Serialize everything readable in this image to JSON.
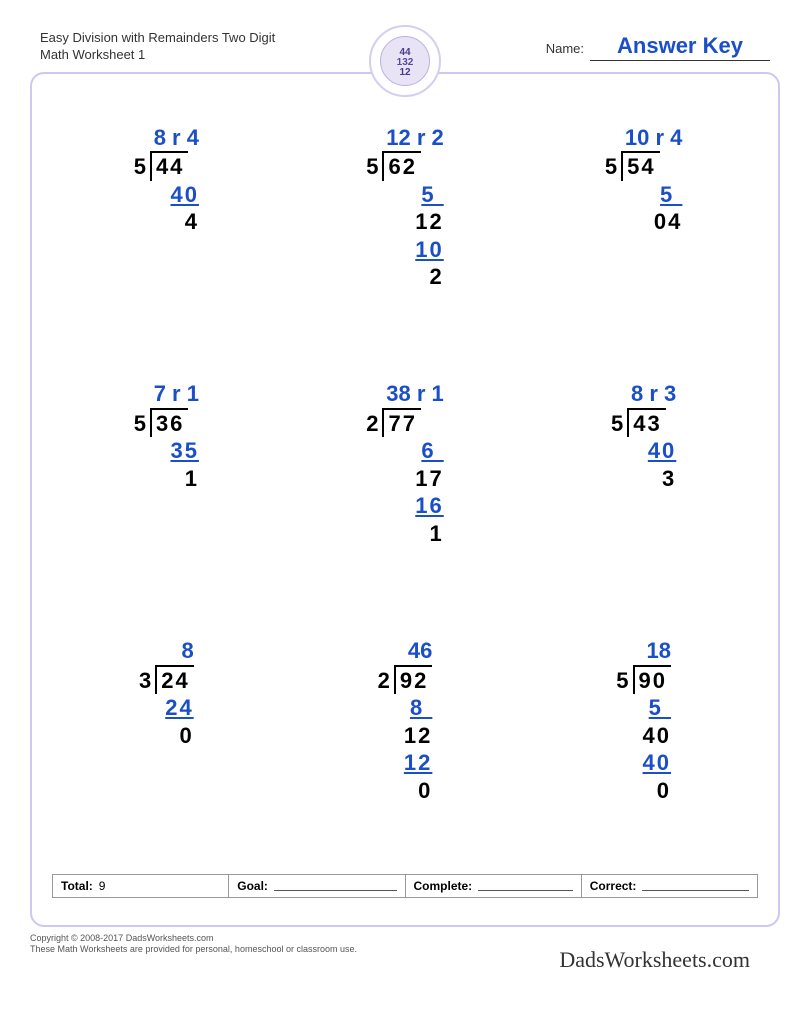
{
  "header": {
    "title_line1": "Easy Division with Remainders Two Digit",
    "title_line2": "Math Worksheet 1",
    "name_label": "Name:",
    "answer_key": "Answer Key"
  },
  "colors": {
    "answer_blue": "#1a4fc7",
    "frame_border": "#cfc7ee",
    "text_black": "#000000"
  },
  "problems": [
    {
      "quotient": "8 r 4",
      "divisor": "5",
      "dividend": "44",
      "lines": [
        {
          "text": "40",
          "color": "blue",
          "underline": true,
          "pad": 0
        },
        {
          "text": "4",
          "color": "black",
          "underline": false,
          "pad": 0
        }
      ]
    },
    {
      "quotient": "12 r 2",
      "divisor": "5",
      "dividend": "62",
      "lines": [
        {
          "text": "5 ",
          "color": "blue",
          "underline": true,
          "pad": 0
        },
        {
          "text": "12",
          "color": "black",
          "underline": false,
          "pad": 0
        },
        {
          "text": "10",
          "color": "blue",
          "underline": true,
          "pad": 0
        },
        {
          "text": "2",
          "color": "black",
          "underline": false,
          "pad": 0
        }
      ]
    },
    {
      "quotient": "10 r 4",
      "divisor": "5",
      "dividend": "54",
      "lines": [
        {
          "text": "5 ",
          "color": "blue",
          "underline": true,
          "pad": 0
        },
        {
          "text": "04",
          "color": "black",
          "underline": false,
          "pad": 0
        }
      ]
    },
    {
      "quotient": "7 r 1",
      "divisor": "5",
      "dividend": "36",
      "lines": [
        {
          "text": "35",
          "color": "blue",
          "underline": true,
          "pad": 0
        },
        {
          "text": "1",
          "color": "black",
          "underline": false,
          "pad": 0
        }
      ]
    },
    {
      "quotient": "38 r 1",
      "divisor": "2",
      "dividend": "77",
      "lines": [
        {
          "text": "6 ",
          "color": "blue",
          "underline": true,
          "pad": 0
        },
        {
          "text": "17",
          "color": "black",
          "underline": false,
          "pad": 0
        },
        {
          "text": "16",
          "color": "blue",
          "underline": true,
          "pad": 0
        },
        {
          "text": "1",
          "color": "black",
          "underline": false,
          "pad": 0
        }
      ]
    },
    {
      "quotient": "8 r 3",
      "divisor": "5",
      "dividend": "43",
      "lines": [
        {
          "text": "40",
          "color": "blue",
          "underline": true,
          "pad": 0
        },
        {
          "text": "3",
          "color": "black",
          "underline": false,
          "pad": 0
        }
      ]
    },
    {
      "quotient": "8",
      "divisor": "3",
      "dividend": "24",
      "lines": [
        {
          "text": "24",
          "color": "blue",
          "underline": true,
          "pad": 0
        },
        {
          "text": "0",
          "color": "black",
          "underline": false,
          "pad": 0
        }
      ]
    },
    {
      "quotient": "46",
      "divisor": "2",
      "dividend": "92",
      "lines": [
        {
          "text": "8 ",
          "color": "blue",
          "underline": true,
          "pad": 0
        },
        {
          "text": "12",
          "color": "black",
          "underline": false,
          "pad": 0
        },
        {
          "text": "12",
          "color": "blue",
          "underline": true,
          "pad": 0
        },
        {
          "text": "0",
          "color": "black",
          "underline": false,
          "pad": 0
        }
      ]
    },
    {
      "quotient": "18",
      "divisor": "5",
      "dividend": "90",
      "lines": [
        {
          "text": "5 ",
          "color": "blue",
          "underline": true,
          "pad": 0
        },
        {
          "text": "40",
          "color": "black",
          "underline": false,
          "pad": 0
        },
        {
          "text": "40",
          "color": "blue",
          "underline": true,
          "pad": 0
        },
        {
          "text": "0",
          "color": "black",
          "underline": false,
          "pad": 0
        }
      ]
    }
  ],
  "footer": {
    "total_label": "Total:",
    "total_value": "9",
    "goal_label": "Goal:",
    "complete_label": "Complete:",
    "correct_label": "Correct:"
  },
  "copyright": {
    "line1": "Copyright © 2008-2017 DadsWorksheets.com",
    "line2": "These Math Worksheets are provided for personal, homeschool or classroom use."
  },
  "brand": "DadsWorksheets.com"
}
